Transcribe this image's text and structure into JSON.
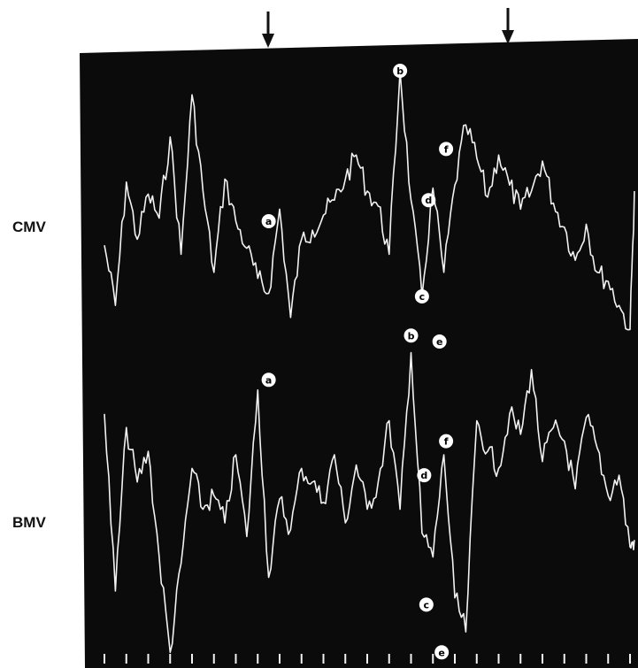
{
  "colors": {
    "panel": "#0b0b0b",
    "trace": "#f2f2f2",
    "background": "#ffffff",
    "arrow": "#111111",
    "marker_fill": "#ffffff"
  },
  "chart_data": {
    "type": "line",
    "title": "",
    "xlabel": "",
    "ylabel": "",
    "x_ticks": 25,
    "time_arrows_at_tick": [
      6.5,
      17.5
    ],
    "grid": false,
    "series": [
      {
        "name": "CMV",
        "x": [
          0,
          0.5,
          1,
          1.5,
          2,
          2.5,
          3,
          3.5,
          4,
          4.5,
          5,
          5.5,
          6,
          6.5,
          7,
          7.5,
          8,
          8.5,
          9,
          9.5,
          10,
          10.5,
          11,
          11.5,
          12,
          12.5,
          13,
          13.5,
          14,
          14.5,
          15,
          15.5,
          16,
          16.5,
          17,
          17.5,
          18,
          18.5,
          19,
          19.5,
          20,
          20.5,
          21,
          21.5,
          22,
          22.5,
          23,
          23.5,
          24,
          24.2
        ],
        "values": [
          0.42,
          0.22,
          0.63,
          0.44,
          0.59,
          0.51,
          0.78,
          0.39,
          0.92,
          0.6,
          0.33,
          0.64,
          0.5,
          0.41,
          0.31,
          0.26,
          0.54,
          0.18,
          0.44,
          0.47,
          0.52,
          0.57,
          0.64,
          0.72,
          0.6,
          0.55,
          0.39,
          1.0,
          0.57,
          0.25,
          0.61,
          0.33,
          0.62,
          0.82,
          0.71,
          0.58,
          0.72,
          0.62,
          0.54,
          0.6,
          0.7,
          0.56,
          0.48,
          0.37,
          0.49,
          0.33,
          0.3,
          0.22,
          0.14,
          0.6
        ],
        "labels": [
          {
            "text": "a",
            "x": 7.5,
            "y": 0.5
          },
          {
            "text": "b",
            "x": 13.5,
            "y": 1.0
          },
          {
            "text": "c",
            "x": 14.5,
            "y": 0.25
          },
          {
            "text": "d",
            "x": 14.8,
            "y": 0.57
          },
          {
            "text": "e",
            "x": 15.3,
            "y": 0.1
          },
          {
            "text": "f",
            "x": 15.6,
            "y": 0.74
          }
        ]
      },
      {
        "name": "BMV",
        "x": [
          0,
          0.5,
          1,
          1.5,
          2,
          2.5,
          3,
          3.5,
          4,
          4.5,
          5,
          5.5,
          6,
          6.5,
          7,
          7.5,
          8,
          8.5,
          9,
          9.5,
          10,
          10.5,
          11,
          11.5,
          12,
          12.5,
          13,
          13.5,
          14,
          14.5,
          15,
          15.5,
          16,
          16.5,
          17,
          17.5,
          18,
          18.5,
          19,
          19.5,
          20,
          20.5,
          21,
          21.5,
          22,
          22.5,
          23,
          23.5,
          24,
          24.2
        ],
        "values": [
          0.72,
          0.2,
          0.68,
          0.52,
          0.61,
          0.3,
          0.02,
          0.28,
          0.56,
          0.44,
          0.48,
          0.4,
          0.6,
          0.36,
          0.79,
          0.24,
          0.47,
          0.38,
          0.56,
          0.52,
          0.46,
          0.6,
          0.4,
          0.57,
          0.44,
          0.52,
          0.7,
          0.44,
          0.9,
          0.37,
          0.3,
          0.6,
          0.18,
          0.08,
          0.7,
          0.61,
          0.56,
          0.72,
          0.66,
          0.85,
          0.58,
          0.68,
          0.64,
          0.5,
          0.71,
          0.62,
          0.48,
          0.54,
          0.33,
          0.35
        ],
        "labels": [
          {
            "text": "a",
            "x": 7.5,
            "y": 0.82
          },
          {
            "text": "b",
            "x": 14.0,
            "y": 0.95
          },
          {
            "text": "c",
            "x": 14.7,
            "y": 0.16
          },
          {
            "text": "d",
            "x": 14.6,
            "y": 0.54
          },
          {
            "text": "e",
            "x": 15.4,
            "y": 0.02
          },
          {
            "text": "f",
            "x": 15.6,
            "y": 0.64
          }
        ]
      }
    ]
  }
}
